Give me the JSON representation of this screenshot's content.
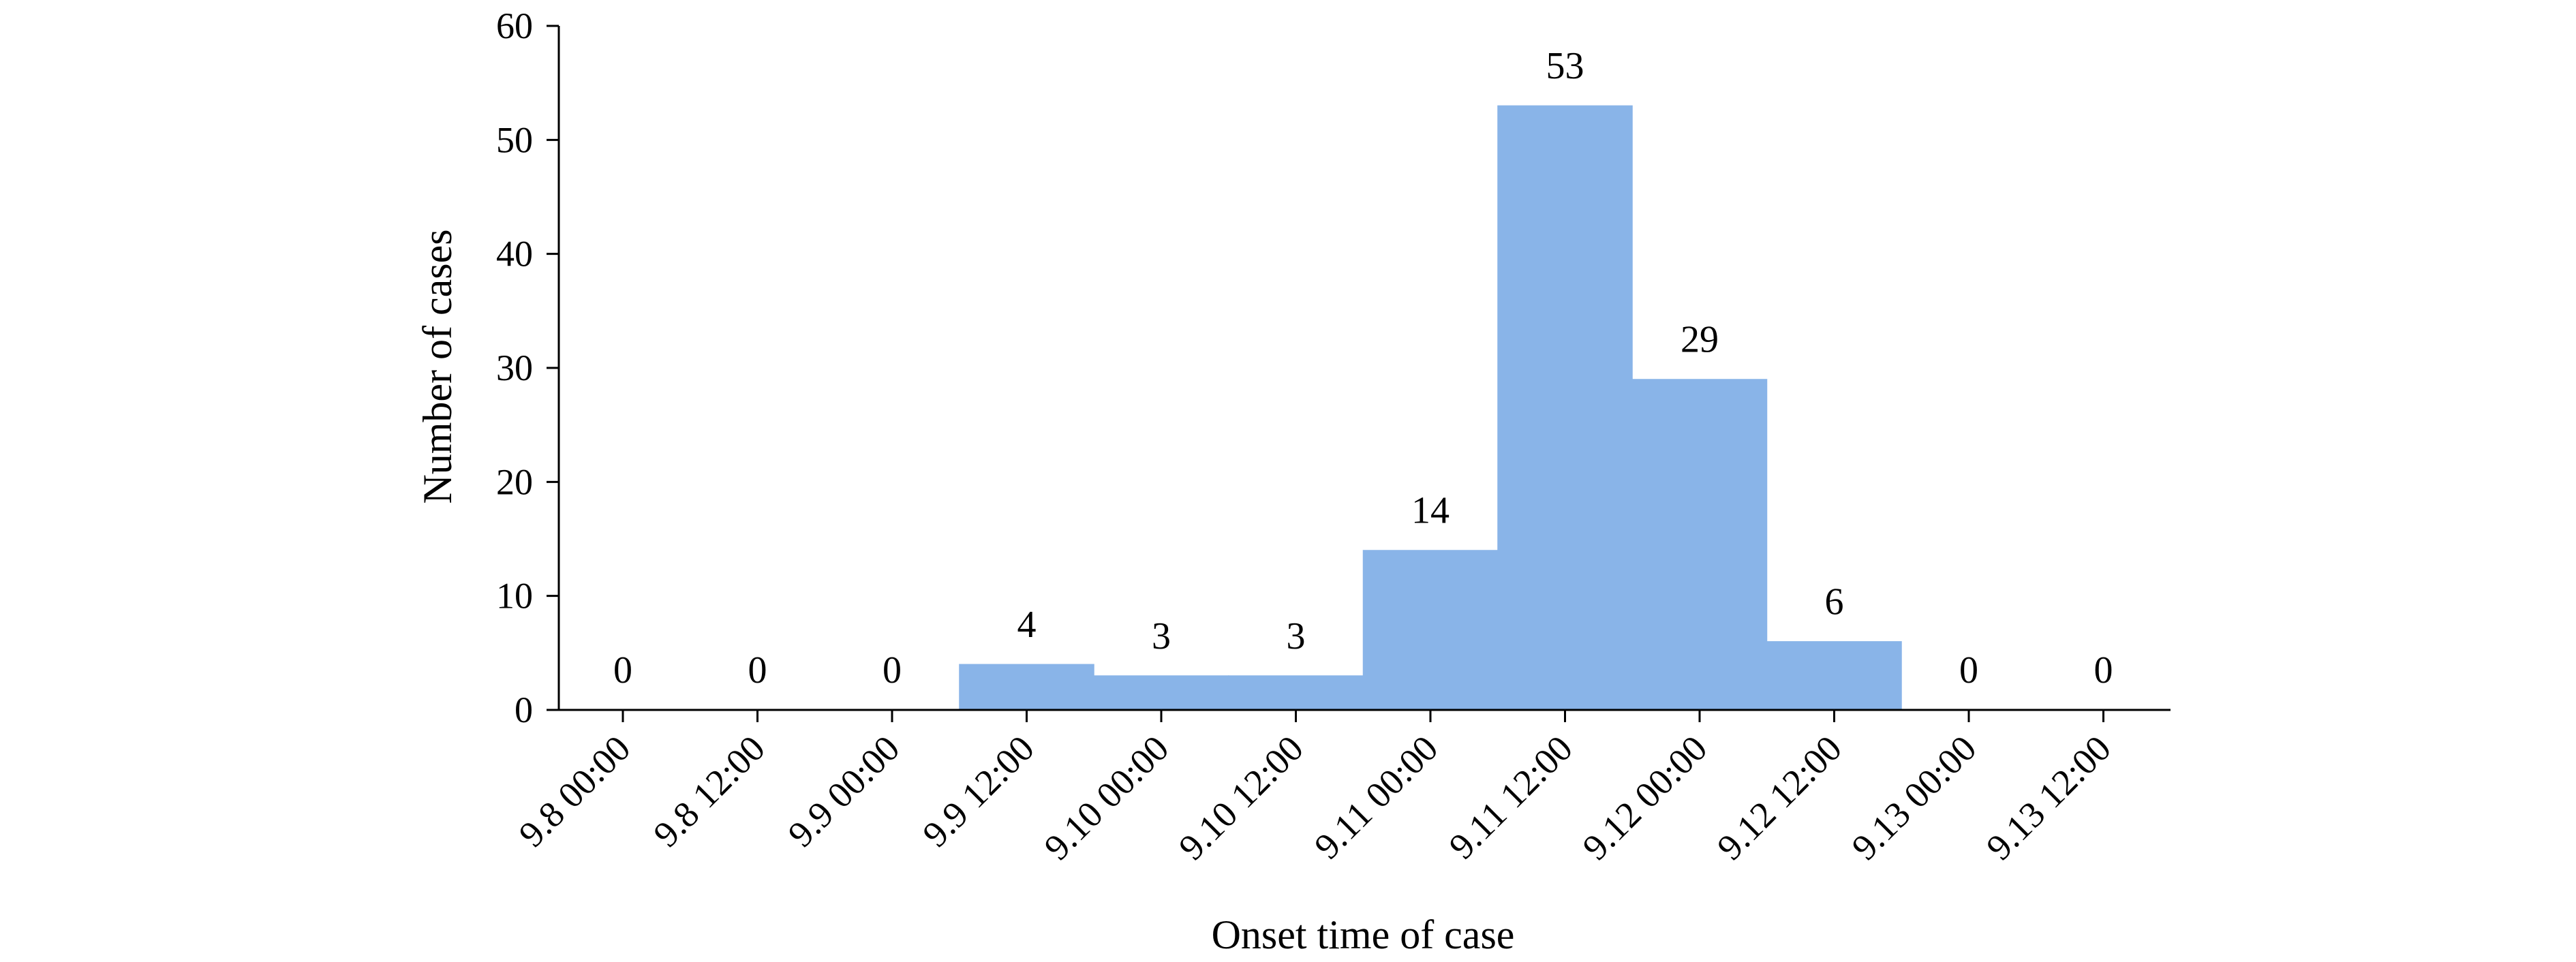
{
  "chart_data": {
    "type": "bar",
    "categories": [
      "9.8 00:00",
      "9.8 12:00",
      "9.9 00:00",
      "9.9 12:00",
      "9.10 00:00",
      "9.10 12:00",
      "9.11 00:00",
      "9.11 12:00",
      "9.12 00:00",
      "9.12 12:00",
      "9.13 00:00",
      "9.13 12:00"
    ],
    "values": [
      0,
      0,
      0,
      4,
      3,
      3,
      14,
      53,
      29,
      6,
      0,
      0
    ],
    "data_labels": [
      "0",
      "0",
      "0",
      "4",
      "3",
      "3",
      "14",
      "53",
      "29",
      "6",
      "0",
      "0"
    ],
    "title": "",
    "xlabel": "Onset time of case",
    "ylabel": "Number of cases",
    "ylim": [
      0,
      60
    ],
    "yticks": [
      0,
      10,
      20,
      30,
      40,
      50,
      60
    ],
    "grid": false,
    "bar_color": "#89b4e8"
  }
}
